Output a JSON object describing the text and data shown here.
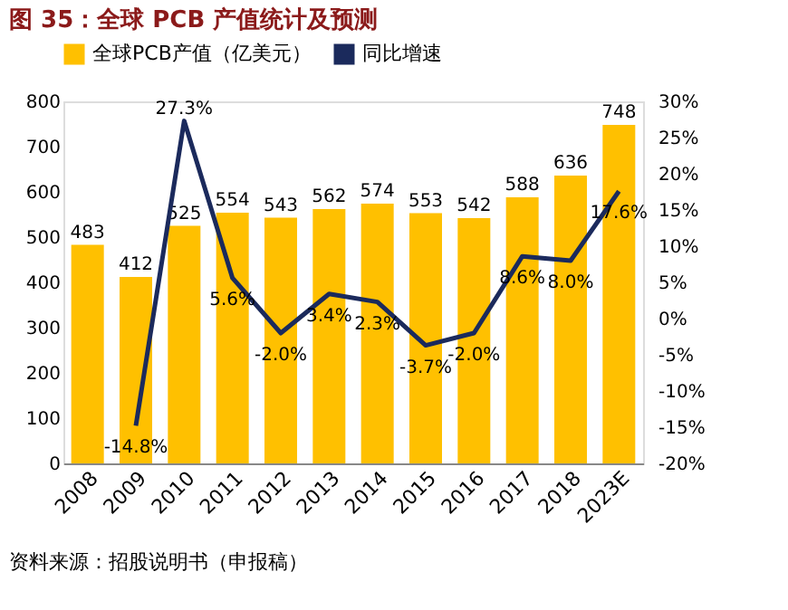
{
  "chart_data": {
    "type": "bar",
    "title": "图 35：全球 PCB 产值统计及预测",
    "categories": [
      "2008",
      "2009",
      "2010",
      "2011",
      "2012",
      "2013",
      "2014",
      "2015",
      "2016",
      "2017",
      "2018",
      "2023E"
    ],
    "series": [
      {
        "name": "全球PCB产值（亿美元）",
        "color": "#ffc000",
        "values": [
          483,
          412,
          525,
          554,
          543,
          562,
          574,
          553,
          542,
          588,
          636,
          748
        ]
      },
      {
        "name": "同比增速",
        "type": "line",
        "axis": "y2",
        "color": "#1b2a5c",
        "values": [
          null,
          -14.8,
          27.3,
          5.6,
          -2.0,
          3.4,
          2.3,
          -3.7,
          -2.0,
          8.6,
          8.0,
          17.6
        ],
        "value_labels": [
          null,
          "-14.8%",
          "27.3%",
          "5.6%",
          "-2.0%",
          "3.4%",
          "2.3%",
          "-3.7%",
          "-2.0%",
          "8.6%",
          "8.0%",
          "17.6%"
        ]
      }
    ],
    "ylim": [
      0,
      800
    ],
    "yticks": [
      0,
      100,
      200,
      300,
      400,
      500,
      600,
      700,
      800
    ],
    "y2lim": [
      -20,
      30
    ],
    "y2ticks": [
      {
        "value": -20,
        "label": "-20%"
      },
      {
        "value": -15,
        "label": "-15%"
      },
      {
        "value": -10,
        "label": "-10%"
      },
      {
        "value": -5,
        "label": "-5%"
      },
      {
        "value": 0,
        "label": "0%"
      },
      {
        "value": 5,
        "label": "5%"
      },
      {
        "value": 10,
        "label": "10%"
      },
      {
        "value": 15,
        "label": "15%"
      },
      {
        "value": 20,
        "label": "20%"
      },
      {
        "value": 25,
        "label": "25%"
      },
      {
        "value": 30,
        "label": "30%"
      }
    ],
    "data_labels": true,
    "legend": "top",
    "grid": false,
    "annotations": [
      "资料来源：招股说明书（申报稿）"
    ]
  }
}
